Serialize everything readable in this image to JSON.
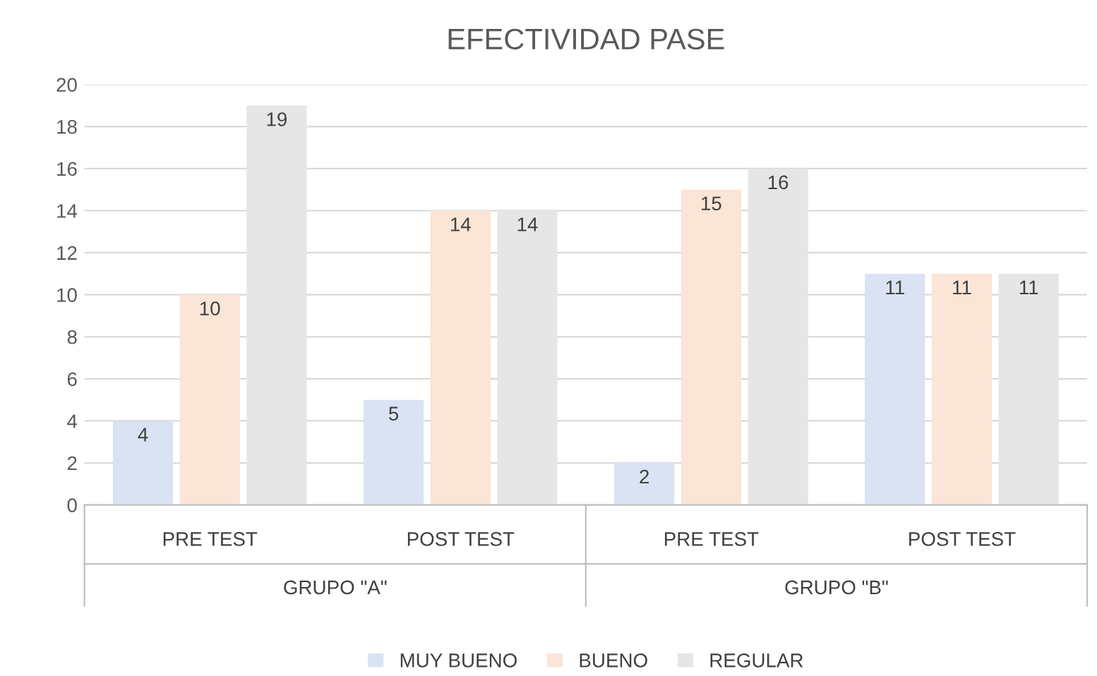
{
  "chart_data": {
    "type": "bar",
    "title": "EFECTIVIDAD PASE",
    "categories": [
      "PRE TEST",
      "POST TEST",
      "PRE TEST",
      "POST TEST"
    ],
    "series": [
      {
        "name": "MUY BUENO",
        "color": "#dae3f3",
        "values": [
          4,
          5,
          2,
          11
        ]
      },
      {
        "name": "BUENO",
        "color": "#fbe5d6",
        "values": [
          10,
          14,
          15,
          11
        ]
      },
      {
        "name": "REGULAR",
        "color": "#e7e6e6",
        "values": [
          19,
          14,
          16,
          11
        ]
      }
    ],
    "annotations": [
      "GRUPO \"A\"",
      "GRUPO \"B\""
    ],
    "ylim": [
      0,
      20
    ],
    "yticks": [
      0,
      2,
      4,
      6,
      8,
      10,
      12,
      14,
      16,
      18,
      20
    ],
    "grid": "y",
    "legend": "bottom",
    "data_labels": true
  }
}
